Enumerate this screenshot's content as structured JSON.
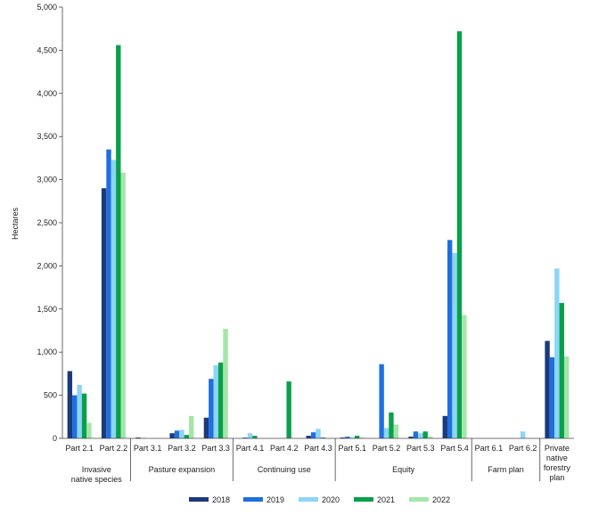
{
  "chart_data": {
    "type": "bar",
    "ylabel": "Hectares",
    "ylim": [
      0,
      5000
    ],
    "yticks": [
      0,
      500,
      1000,
      1500,
      2000,
      2500,
      3000,
      3500,
      4000,
      4500,
      5000
    ],
    "ytick_labels": [
      "0",
      "500",
      "1,000",
      "1,500",
      "2,000",
      "2,500",
      "3,000",
      "3,500",
      "4,000",
      "4,500",
      "5,000"
    ],
    "categories": [
      "Part 2.1",
      "Part 2.2",
      "Part 3.1",
      "Part 3.2",
      "Part 3.3",
      "Part 4.1",
      "Part 4.2",
      "Part 4.3",
      "Part 5.1",
      "Part 5.2",
      "Part 5.3",
      "Part 5.4",
      "Part 6.1",
      "Part 6.2",
      "Private native forestry plan"
    ],
    "groups": [
      {
        "label": "Invasive native species",
        "from": 0,
        "to": 1
      },
      {
        "label": "Pasture expansion",
        "from": 2,
        "to": 4
      },
      {
        "label": "Continuing use",
        "from": 5,
        "to": 7
      },
      {
        "label": "Equity",
        "from": 8,
        "to": 11
      },
      {
        "label": "Farm plan",
        "from": 12,
        "to": 13
      },
      {
        "label": "",
        "from": 14,
        "to": 14
      }
    ],
    "legend_position": "bottom",
    "grid": false,
    "series": [
      {
        "name": "2018",
        "color": "#1b3a7a",
        "values": [
          780,
          2900,
          10,
          60,
          240,
          0,
          0,
          30,
          10,
          0,
          20,
          260,
          0,
          0,
          1130
        ]
      },
      {
        "name": "2019",
        "color": "#1f6fe0",
        "values": [
          500,
          3350,
          5,
          90,
          690,
          10,
          0,
          70,
          20,
          860,
          80,
          2300,
          0,
          0,
          940
        ]
      },
      {
        "name": "2020",
        "color": "#8bd6f7",
        "values": [
          620,
          3230,
          0,
          100,
          850,
          60,
          0,
          110,
          10,
          120,
          60,
          2150,
          0,
          80,
          1970
        ]
      },
      {
        "name": "2021",
        "color": "#0aa04a",
        "values": [
          520,
          4560,
          0,
          40,
          880,
          30,
          660,
          10,
          30,
          300,
          80,
          4720,
          0,
          0,
          1570
        ]
      },
      {
        "name": "2022",
        "color": "#a3e6a8",
        "values": [
          180,
          3080,
          0,
          260,
          1270,
          0,
          0,
          0,
          10,
          160,
          20,
          1430,
          0,
          0,
          950
        ]
      }
    ]
  }
}
